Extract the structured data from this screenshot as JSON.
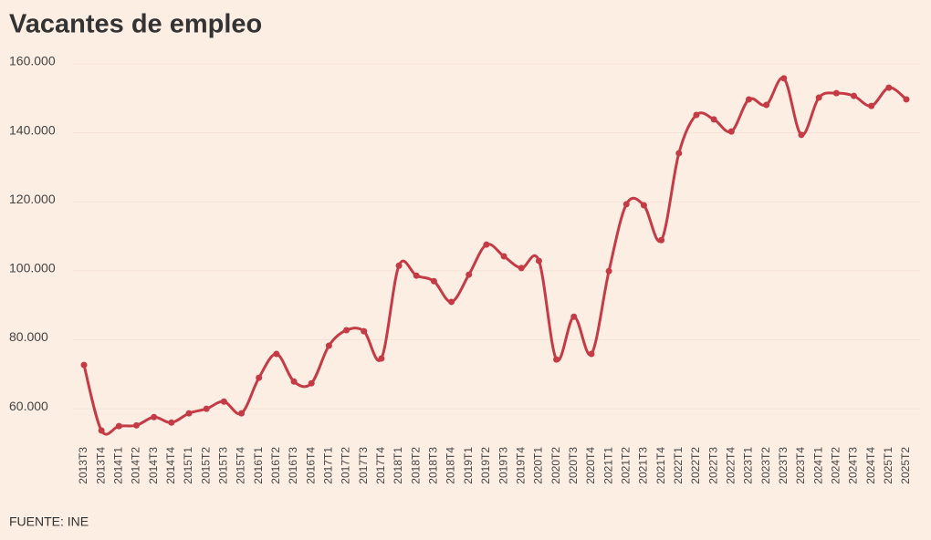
{
  "chart_data": {
    "type": "line",
    "title": "Vacantes de empleo",
    "source": "FUENTE: INE",
    "categories": [
      "2013T3",
      "2013T4",
      "2014T1",
      "2014T2",
      "2014T3",
      "2014T4",
      "2015T1",
      "2015T2",
      "2015T3",
      "2015T4",
      "2016T1",
      "2016T2",
      "2016T3",
      "2016T4",
      "2017T1",
      "2017T2",
      "2017T3",
      "2017T4",
      "2018T1",
      "2018T2",
      "2018T3",
      "2018T4",
      "2019T1",
      "2019T2",
      "2019T3",
      "2019T4",
      "2020T1",
      "2020T2",
      "2020T3",
      "2020T4",
      "2021T1",
      "2021T2",
      "2021T3",
      "2021T4",
      "2022T1",
      "2022T2",
      "2022T3",
      "2022T4",
      "2023T1",
      "2023T2",
      "2023T3",
      "2023T4",
      "2024T1",
      "2024T2",
      "2024T3",
      "2024T4",
      "2025T1",
      "2025T2"
    ],
    "values": [
      72700,
      53700,
      55000,
      55200,
      57600,
      56000,
      58700,
      60000,
      62100,
      58700,
      69000,
      75900,
      67900,
      67400,
      78300,
      82800,
      82500,
      74600,
      101500,
      98600,
      97000,
      91000,
      98900,
      107600,
      104200,
      100800,
      102900,
      74300,
      86700,
      75900,
      99900,
      119300,
      119000,
      108900,
      134100,
      145200,
      143900,
      140400,
      149700,
      148100,
      155800,
      139400,
      150200,
      151500,
      150700,
      147800,
      153100,
      149700
    ],
    "color": "#c53b45",
    "ylim": [
      50000,
      160000
    ],
    "yticks": [
      {
        "value": 60000,
        "label": "60.000"
      },
      {
        "value": 80000,
        "label": "80.000"
      },
      {
        "value": 100000,
        "label": "100.000"
      },
      {
        "value": 120000,
        "label": "120.000"
      },
      {
        "value": 140000,
        "label": "140.000"
      },
      {
        "value": 160000,
        "label": "160.000"
      }
    ],
    "grid": true
  }
}
